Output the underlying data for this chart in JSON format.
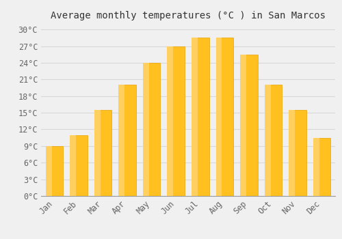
{
  "title": "Average monthly temperatures (°C ) in San Marcos",
  "months": [
    "Jan",
    "Feb",
    "Mar",
    "Apr",
    "May",
    "Jun",
    "Jul",
    "Aug",
    "Sep",
    "Oct",
    "Nov",
    "Dec"
  ],
  "values": [
    9,
    11,
    15.5,
    20,
    24,
    27,
    28.5,
    28.5,
    25.5,
    20,
    15.5,
    10.5
  ],
  "bar_color_main": "#FFC020",
  "bar_color_light": "#FFD060",
  "bar_edge_color": "#E8A000",
  "ylim": [
    0,
    31
  ],
  "yticks": [
    0,
    3,
    6,
    9,
    12,
    15,
    18,
    21,
    24,
    27,
    30
  ],
  "ylabel_suffix": "°C",
  "background_color": "#f0f0f0",
  "plot_bg_color": "#f0f0f0",
  "grid_color": "#d8d8d8",
  "title_fontsize": 10,
  "tick_fontsize": 8.5,
  "bar_width": 0.72
}
